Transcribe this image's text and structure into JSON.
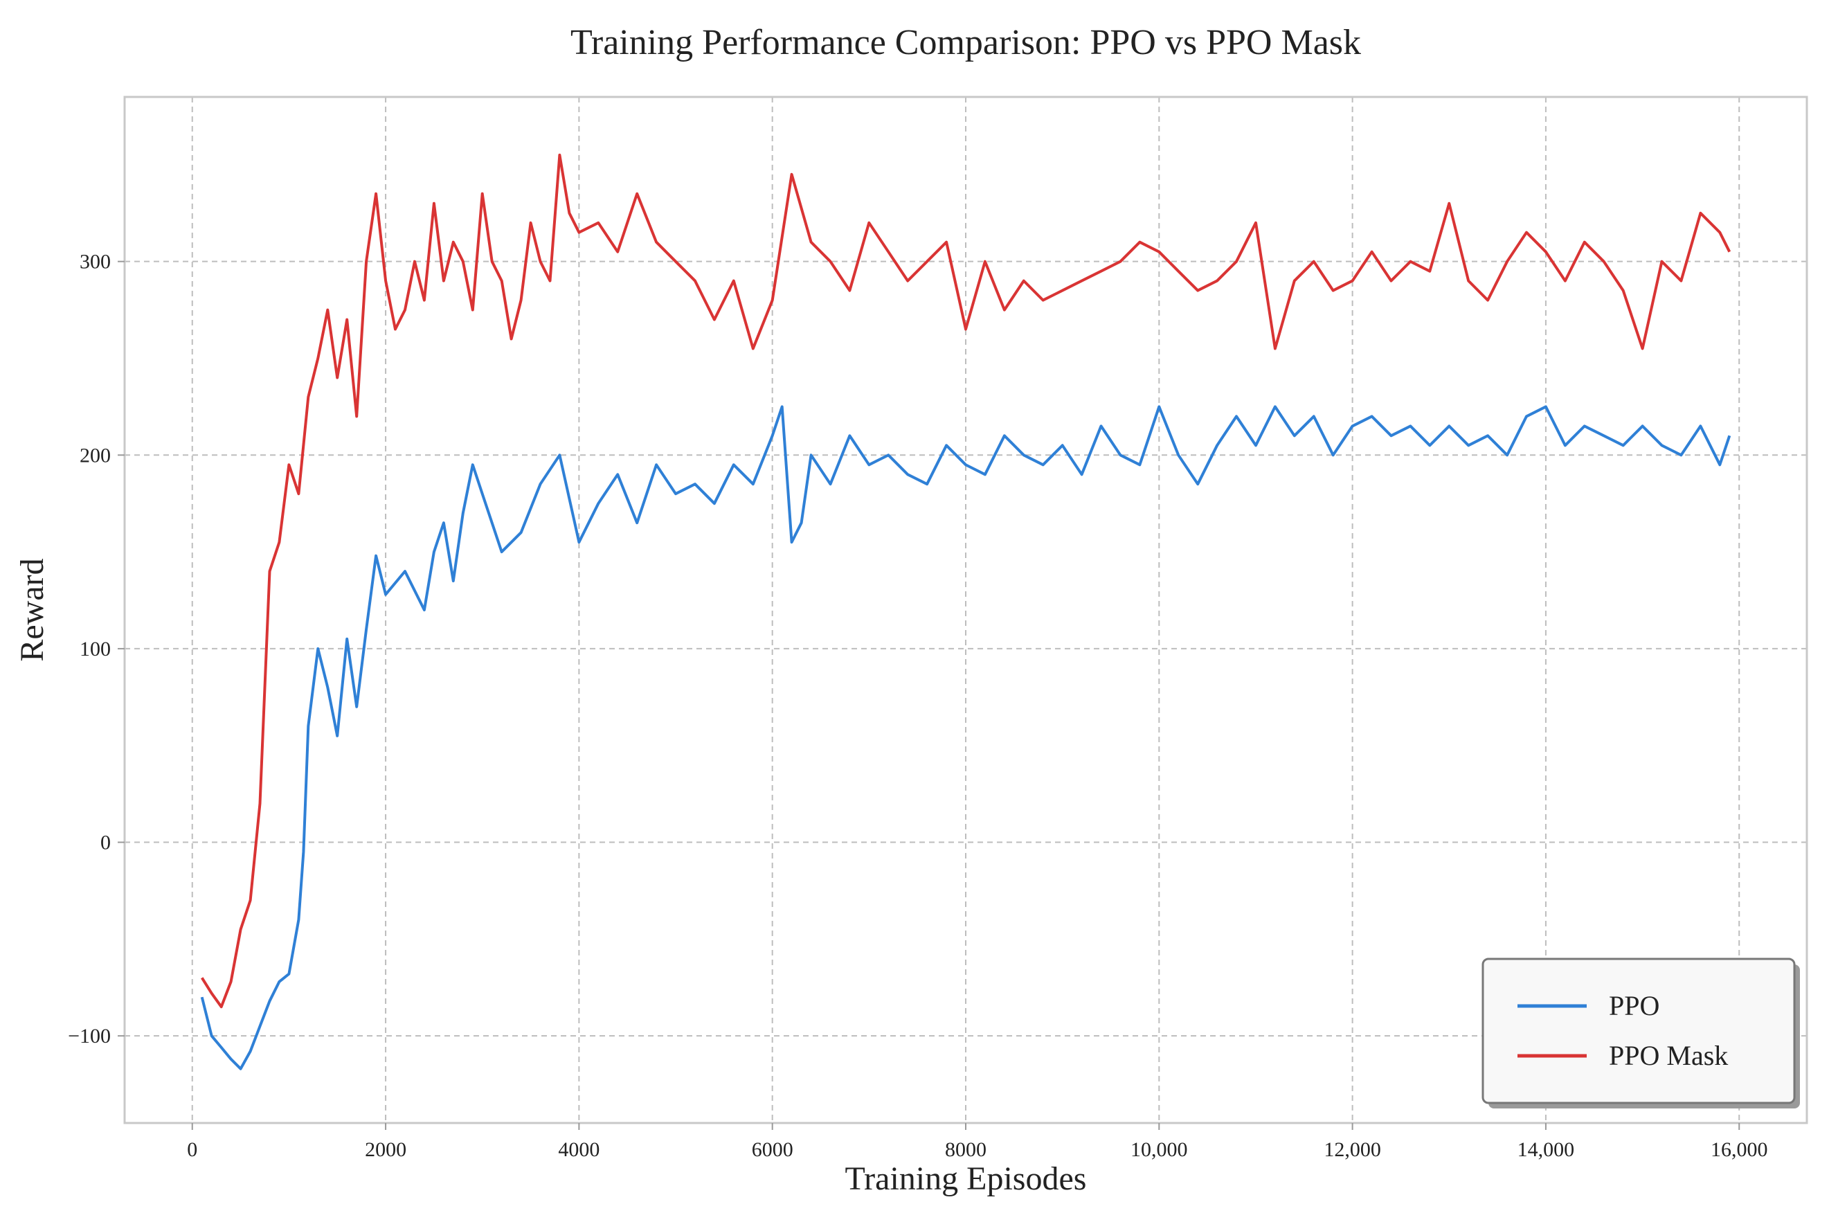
{
  "chart_data": {
    "type": "line",
    "title": "Training Performance Comparison: PPO vs PPO Mask",
    "xlabel": "Training Episodes",
    "ylabel": "Reward",
    "xlim": [
      -700,
      16700
    ],
    "ylim": [
      -145,
      385
    ],
    "x_ticks": [
      {
        "value": 0,
        "label": "0"
      },
      {
        "value": 2000,
        "label": "2000"
      },
      {
        "value": 4000,
        "label": "4000"
      },
      {
        "value": 6000,
        "label": "6000"
      },
      {
        "value": 8000,
        "label": "8000"
      },
      {
        "value": 10000,
        "label": "10,000"
      },
      {
        "value": 12000,
        "label": "12,000"
      },
      {
        "value": 14000,
        "label": "14,000"
      },
      {
        "value": 16000,
        "label": "16,000"
      }
    ],
    "y_ticks": [
      {
        "value": -100,
        "label": "−100"
      },
      {
        "value": 0,
        "label": "0"
      },
      {
        "value": 100,
        "label": "100"
      },
      {
        "value": 200,
        "label": "200"
      },
      {
        "value": 300,
        "label": "300"
      }
    ],
    "grid": true,
    "legend_position": "bottom-right",
    "series": [
      {
        "name": "PPO",
        "color": "#2f80d6",
        "x": [
          100,
          200,
          300,
          400,
          500,
          600,
          700,
          800,
          900,
          1000,
          1100,
          1150,
          1200,
          1300,
          1400,
          1500,
          1600,
          1700,
          1800,
          1900,
          2000,
          2200,
          2400,
          2500,
          2600,
          2700,
          2800,
          2900,
          3000,
          3200,
          3400,
          3600,
          3800,
          4000,
          4200,
          4400,
          4600,
          4800,
          5000,
          5200,
          5400,
          5600,
          5800,
          6000,
          6100,
          6200,
          6300,
          6400,
          6600,
          6800,
          7000,
          7200,
          7400,
          7600,
          7800,
          8000,
          8200,
          8400,
          8600,
          8800,
          9000,
          9200,
          9400,
          9600,
          9800,
          10000,
          10200,
          10400,
          10600,
          10800,
          11000,
          11200,
          11400,
          11600,
          11800,
          12000,
          12200,
          12400,
          12600,
          12800,
          13000,
          13200,
          13400,
          13600,
          13800,
          14000,
          14200,
          14400,
          14600,
          14800,
          15000,
          15200,
          15400,
          15600,
          15800,
          15900
        ],
        "values": [
          -80,
          -100,
          -106,
          -112,
          -117,
          -108,
          -95,
          -82,
          -72,
          -68,
          -40,
          -5,
          60,
          100,
          80,
          55,
          105,
          70,
          110,
          148,
          128,
          140,
          120,
          150,
          165,
          135,
          170,
          195,
          180,
          150,
          160,
          185,
          200,
          155,
          175,
          190,
          165,
          195,
          180,
          185,
          175,
          195,
          185,
          210,
          225,
          155,
          165,
          200,
          185,
          210,
          195,
          200,
          190,
          185,
          205,
          195,
          190,
          210,
          200,
          195,
          205,
          190,
          215,
          200,
          195,
          225,
          200,
          185,
          205,
          220,
          205,
          225,
          210,
          220,
          200,
          215,
          220,
          210,
          215,
          205,
          215,
          205,
          210,
          200,
          220,
          225,
          205,
          215,
          210,
          205,
          215,
          205,
          200,
          215,
          195,
          210
        ]
      },
      {
        "name": "PPO Mask",
        "color": "#d93434",
        "x": [
          100,
          200,
          300,
          400,
          500,
          600,
          700,
          800,
          900,
          1000,
          1100,
          1200,
          1300,
          1400,
          1500,
          1600,
          1700,
          1800,
          1900,
          2000,
          2100,
          2200,
          2300,
          2400,
          2500,
          2600,
          2700,
          2800,
          2900,
          3000,
          3100,
          3200,
          3300,
          3400,
          3500,
          3600,
          3700,
          3800,
          3900,
          4000,
          4200,
          4400,
          4600,
          4800,
          5000,
          5200,
          5400,
          5600,
          5800,
          6000,
          6200,
          6400,
          6600,
          6800,
          7000,
          7200,
          7400,
          7600,
          7800,
          8000,
          8200,
          8400,
          8600,
          8800,
          9000,
          9200,
          9400,
          9600,
          9800,
          10000,
          10200,
          10400,
          10600,
          10800,
          11000,
          11200,
          11400,
          11600,
          11800,
          12000,
          12200,
          12400,
          12600,
          12800,
          13000,
          13200,
          13400,
          13600,
          13800,
          14000,
          14200,
          14400,
          14600,
          14800,
          15000,
          15200,
          15400,
          15600,
          15800,
          15900
        ],
        "values": [
          -70,
          -78,
          -85,
          -72,
          -45,
          -30,
          20,
          140,
          155,
          195,
          180,
          230,
          250,
          275,
          240,
          270,
          220,
          300,
          335,
          290,
          265,
          275,
          300,
          280,
          330,
          290,
          310,
          300,
          275,
          335,
          300,
          290,
          260,
          280,
          320,
          300,
          290,
          355,
          325,
          315,
          320,
          305,
          335,
          310,
          300,
          290,
          270,
          290,
          255,
          280,
          345,
          310,
          300,
          285,
          320,
          305,
          290,
          300,
          310,
          265,
          300,
          275,
          290,
          280,
          285,
          290,
          295,
          300,
          310,
          305,
          295,
          285,
          290,
          300,
          320,
          255,
          290,
          300,
          285,
          290,
          305,
          290,
          300,
          295,
          330,
          290,
          280,
          300,
          315,
          305,
          290,
          310,
          300,
          285,
          255,
          300,
          290,
          325,
          315,
          305
        ]
      }
    ]
  }
}
